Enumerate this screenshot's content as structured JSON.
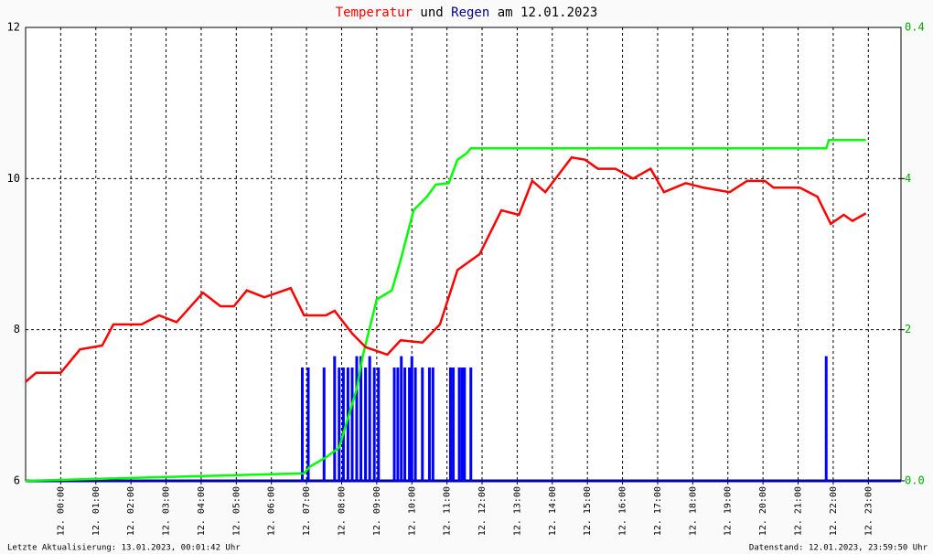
{
  "chart_data": {
    "type": "line",
    "title_parts": [
      {
        "text": "Temperatur",
        "color": "#ff0000"
      },
      {
        "text": " und ",
        "color": "#000000"
      },
      {
        "text": "Regen",
        "color": "#000080"
      },
      {
        "text": " am 12.01.2023",
        "color": "#000000"
      }
    ],
    "footer_left": "Letzte Aktualisierung: 13.01.2023, 00:01:42 Uhr",
    "footer_right": "Datenstand: 12.01.2023, 23:59:50 Uhr",
    "y2_top_label": "0.4",
    "xlim": [
      -1,
      23.93
    ],
    "xticks": [
      {
        "value": 0,
        "label": "12. 00:00"
      },
      {
        "value": 1,
        "label": "12. 01:00"
      },
      {
        "value": 2,
        "label": "12. 02:00"
      },
      {
        "value": 3,
        "label": "12. 03:00"
      },
      {
        "value": 4,
        "label": "12. 04:00"
      },
      {
        "value": 5,
        "label": "12. 05:00"
      },
      {
        "value": 6,
        "label": "12. 06:00"
      },
      {
        "value": 7,
        "label": "12. 07:00"
      },
      {
        "value": 8,
        "label": "12. 08:00"
      },
      {
        "value": 9,
        "label": "12. 09:00"
      },
      {
        "value": 10,
        "label": "12. 10:00"
      },
      {
        "value": 11,
        "label": "12. 11:00"
      },
      {
        "value": 12,
        "label": "12. 12:00"
      },
      {
        "value": 13,
        "label": "12. 13:00"
      },
      {
        "value": 14,
        "label": "12. 14:00"
      },
      {
        "value": 15,
        "label": "12. 15:00"
      },
      {
        "value": 16,
        "label": "12. 16:00"
      },
      {
        "value": 17,
        "label": "12. 17:00"
      },
      {
        "value": 18,
        "label": "12. 18:00"
      },
      {
        "value": 19,
        "label": "12. 19:00"
      },
      {
        "value": 20,
        "label": "12. 20:00"
      },
      {
        "value": 21,
        "label": "12. 21:00"
      },
      {
        "value": 22,
        "label": "12. 22:00"
      },
      {
        "value": 23,
        "label": "12. 23:00"
      }
    ],
    "ylim": [
      6,
      12
    ],
    "yticks": [
      6,
      8,
      10,
      12
    ],
    "y2lim": [
      0,
      6
    ],
    "y2ticks": [
      {
        "value": 0,
        "label": "0.0"
      },
      2,
      4
    ],
    "grid": true,
    "series": [
      {
        "name": "Temperatur",
        "color": "#ff0000",
        "kind": "line",
        "x": [
          -1,
          -0.7,
          0,
          0.55,
          1.18,
          1.5,
          2.3,
          2.8,
          3.3,
          4.05,
          4.55,
          4.93,
          5.3,
          5.8,
          6.55,
          6.93,
          7.55,
          7.8,
          8.3,
          8.68,
          9.3,
          9.68,
          10.3,
          10.8,
          11.3,
          11.93,
          12.55,
          13.05,
          13.43,
          13.8,
          14.55,
          14.93,
          15.3,
          15.8,
          16.3,
          16.8,
          17.18,
          17.8,
          18.3,
          19.05,
          19.55,
          20.05,
          20.3,
          21.05,
          21.55,
          21.93,
          22.3,
          22.55,
          22.93
        ],
        "values": [
          7.31,
          7.43,
          7.43,
          7.74,
          7.79,
          8.07,
          8.07,
          8.19,
          8.1,
          8.49,
          8.31,
          8.31,
          8.52,
          8.43,
          8.55,
          8.19,
          8.19,
          8.25,
          7.95,
          7.77,
          7.67,
          7.86,
          7.83,
          8.07,
          8.79,
          9.0,
          9.58,
          9.52,
          9.97,
          9.82,
          10.28,
          10.25,
          10.13,
          10.13,
          10.0,
          10.13,
          9.82,
          9.94,
          9.88,
          9.82,
          9.97,
          9.97,
          9.88,
          9.88,
          9.76,
          9.4,
          9.52,
          9.44,
          9.54
        ]
      },
      {
        "name": "Regen kumuliert",
        "color": "#00ff00",
        "kind": "line",
        "axis": "y2",
        "x": [
          -1,
          6.93,
          7.1,
          7.55,
          7.93,
          8.43,
          8.6,
          9.0,
          9.43,
          9.68,
          10.05,
          10.43,
          10.68,
          11.05,
          11.3,
          11.55,
          11.68,
          21.8,
          21.88,
          22.93
        ],
        "values": [
          0,
          0.1,
          0.19,
          0.31,
          0.44,
          1.22,
          1.65,
          2.4,
          2.52,
          2.92,
          3.58,
          3.76,
          3.92,
          3.94,
          4.25,
          4.33,
          4.4,
          4.4,
          4.51,
          4.51
        ]
      },
      {
        "name": "Regen",
        "color": "#0000ff",
        "kind": "bar",
        "axis": "y2",
        "x": [
          6.88,
          7.05,
          7.5,
          7.8,
          7.93,
          8.05,
          8.18,
          8.3,
          8.43,
          8.55,
          8.68,
          8.8,
          8.93,
          9.05,
          9.5,
          9.6,
          9.7,
          9.8,
          9.93,
          10.0,
          10.1,
          10.3,
          10.5,
          10.6,
          11.1,
          11.18,
          11.35,
          11.43,
          11.5,
          11.68,
          21.8
        ],
        "values": [
          1.5,
          1.5,
          1.5,
          1.65,
          1.5,
          1.5,
          1.5,
          1.5,
          1.65,
          1.65,
          1.5,
          1.65,
          1.5,
          1.5,
          1.5,
          1.5,
          1.65,
          1.5,
          1.5,
          1.65,
          1.5,
          1.5,
          1.5,
          1.5,
          1.5,
          1.5,
          1.5,
          1.5,
          1.5,
          1.5,
          1.65
        ]
      }
    ]
  }
}
